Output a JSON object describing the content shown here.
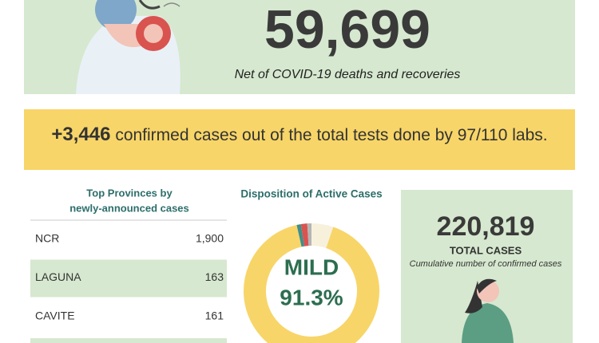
{
  "hero": {
    "value": "59,699",
    "caption": "Net of COVID-19 deaths and recoveries"
  },
  "banner": {
    "highlight": "+3,446",
    "text": "confirmed cases out of the total tests done by 97/110 labs."
  },
  "provinces": {
    "title_lines": [
      "Top Provinces by",
      "newly-announced cases"
    ],
    "rows": [
      [
        "NCR",
        "1,900"
      ],
      [
        "LAGUNA",
        "163"
      ],
      [
        "CAVITE",
        "161"
      ]
    ]
  },
  "disposition": {
    "title": "Disposition of Active Cases",
    "label": "MILD",
    "segments": [
      {
        "value": 5.2,
        "color": "#f7f1dc"
      },
      {
        "value": 91.3,
        "value_label": "91.3%",
        "color": "#f8d568"
      },
      {
        "value": 1.0,
        "color": "#3f8f8a"
      },
      {
        "value": 1.5,
        "color": "#d9534f"
      },
      {
        "value": 1.0,
        "color": "#b5b5b5"
      }
    ]
  },
  "total": {
    "value": "220,819",
    "label": "TOTAL CASES",
    "caption": "Cumulative number of confirmed cases"
  }
}
